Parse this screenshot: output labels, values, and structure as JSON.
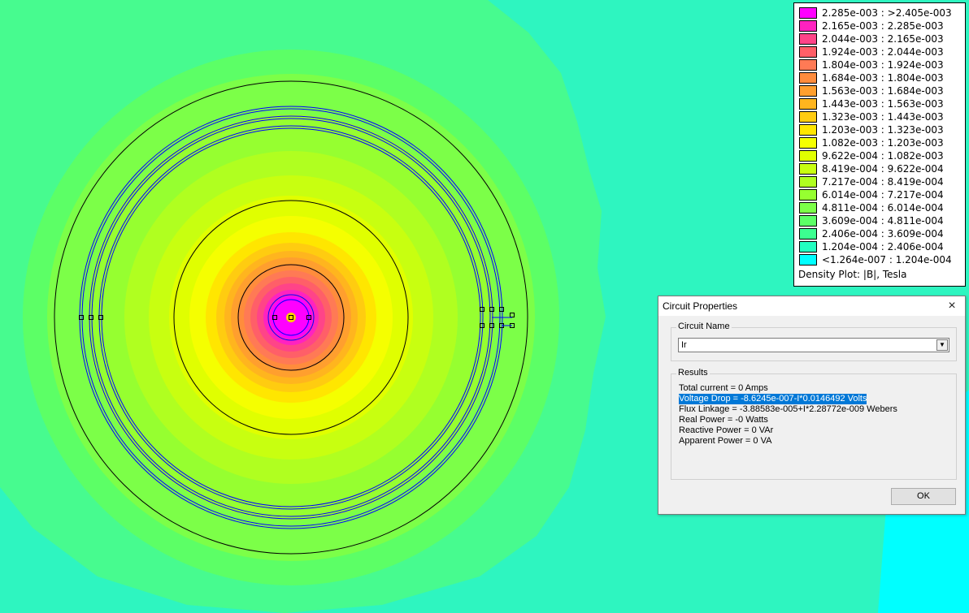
{
  "legend": {
    "entries": [
      {
        "label": "2.285e-003 : >2.405e-003",
        "color": "#ff00ff"
      },
      {
        "label": "2.165e-003 : 2.285e-003",
        "color": "#ff22c0"
      },
      {
        "label": "2.044e-003 : 2.165e-003",
        "color": "#ff4488"
      },
      {
        "label": "1.924e-003 : 2.044e-003",
        "color": "#ff5f68"
      },
      {
        "label": "1.804e-003 : 1.924e-003",
        "color": "#ff7a55"
      },
      {
        "label": "1.684e-003 : 1.804e-003",
        "color": "#ff8c3c"
      },
      {
        "label": "1.563e-003 : 1.684e-003",
        "color": "#ff9f2e"
      },
      {
        "label": "1.443e-003 : 1.563e-003",
        "color": "#ffb51e"
      },
      {
        "label": "1.323e-003 : 1.443e-003",
        "color": "#ffcc10"
      },
      {
        "label": "1.203e-003 : 1.323e-003",
        "color": "#ffe600"
      },
      {
        "label": "1.082e-003 : 1.203e-003",
        "color": "#f5ff00"
      },
      {
        "label": "9.622e-004 : 1.082e-003",
        "color": "#e0ff00"
      },
      {
        "label": "8.419e-004 : 9.622e-004",
        "color": "#c8ff10"
      },
      {
        "label": "7.217e-004 : 8.419e-004",
        "color": "#b0ff20"
      },
      {
        "label": "6.014e-004 : 7.217e-004",
        "color": "#96ff30"
      },
      {
        "label": "4.811e-004 : 6.014e-004",
        "color": "#7cff48"
      },
      {
        "label": "3.609e-004 : 4.811e-004",
        "color": "#5cff66"
      },
      {
        "label": "2.406e-004 : 3.609e-004",
        "color": "#3cff90"
      },
      {
        "label": "1.204e-004 : 2.406e-004",
        "color": "#22ffc0"
      },
      {
        "label": "<1.264e-007 : 1.204e-004",
        "color": "#00ffff"
      }
    ],
    "caption": "Density Plot: |B|, Tesla"
  },
  "dialog": {
    "title": "Circuit Properties",
    "close_icon": "×",
    "circuit_group_label": "Circuit Name",
    "circuit_value": "Ir",
    "dropdown_icon": "▼",
    "results_group_label": "Results",
    "results": [
      "Total current = 0 Amps",
      "Voltage Drop = -8.6245e-007-I*0.0146492 Volts",
      "Flux Linkage = -3.88583e-005+I*2.28772e-009 Webers",
      "Real Power = -0 Watts",
      "Reactive Power = 0 VAr",
      "Apparent Power = 0 VA"
    ],
    "selected_result_index": 1,
    "ok_label": "OK"
  },
  "colors": {
    "outer_field": "#2ef5c0",
    "far_corner": "#00ffff",
    "boundary_line": "#000000",
    "coil_line": "#0000ff"
  }
}
